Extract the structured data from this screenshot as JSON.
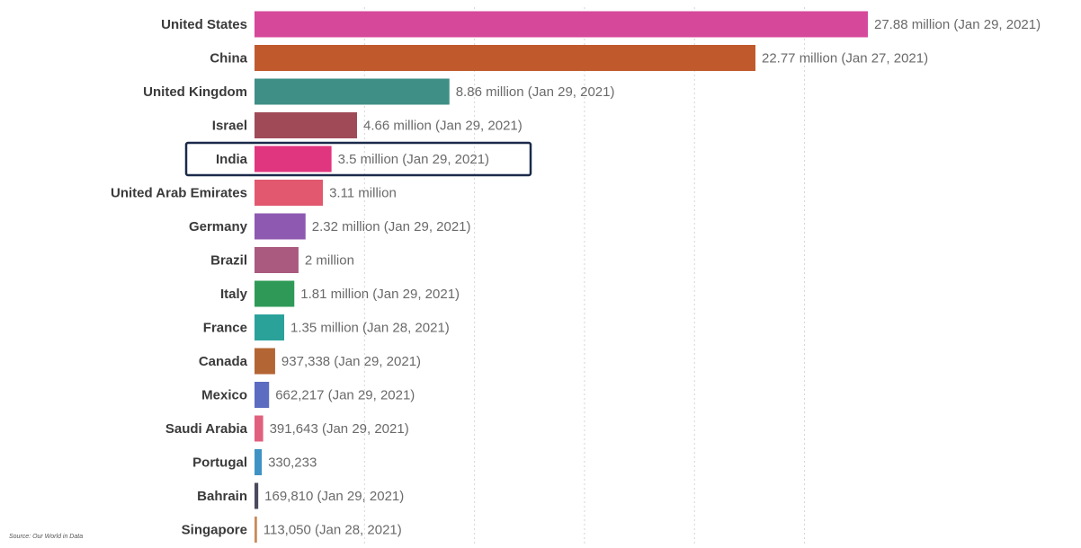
{
  "chart_data": {
    "type": "bar",
    "orientation": "horizontal",
    "title": "",
    "xlabel": "",
    "ylabel": "",
    "grid": "vertical dotted",
    "xlim": [
      0,
      28000000
    ],
    "highlight": "India",
    "categories": [
      "United States",
      "China",
      "United Kingdom",
      "Israel",
      "India",
      "United Arab Emirates",
      "Germany",
      "Brazil",
      "Italy",
      "France",
      "Canada",
      "Mexico",
      "Saudi Arabia",
      "Portugal",
      "Bahrain",
      "Singapore"
    ],
    "values": [
      27880000,
      22770000,
      8860000,
      4660000,
      3500000,
      3110000,
      2320000,
      2000000,
      1810000,
      1350000,
      937338,
      662217,
      391643,
      330233,
      169810,
      113050
    ],
    "value_labels": [
      "27.88 million (Jan 29, 2021)",
      "22.77 million (Jan 27, 2021)",
      "8.86 million (Jan 29, 2021)",
      "4.66 million (Jan 29, 2021)",
      "3.5 million (Jan 29, 2021)",
      "3.11 million",
      "2.32 million (Jan 29, 2021)",
      "2 million",
      "1.81 million (Jan 29, 2021)",
      "1.35 million (Jan 28, 2021)",
      "937,338 (Jan 29, 2021)",
      "662,217 (Jan 29, 2021)",
      "391,643 (Jan 29, 2021)",
      "330,233",
      "169,810 (Jan 29, 2021)",
      "113,050 (Jan 28, 2021)"
    ],
    "colors": [
      "#d6489a",
      "#c05a2c",
      "#3f8f86",
      "#a04a58",
      "#e0367f",
      "#e2586e",
      "#8e59b0",
      "#a95a7e",
      "#2f9a57",
      "#2aa29a",
      "#b46534",
      "#5c6cc0",
      "#e0607e",
      "#3f93c4",
      "#4a4a5e",
      "#c98a5a"
    ],
    "highlight_box_color": "#1b2a4a",
    "source": "Source: Our World in Data"
  }
}
